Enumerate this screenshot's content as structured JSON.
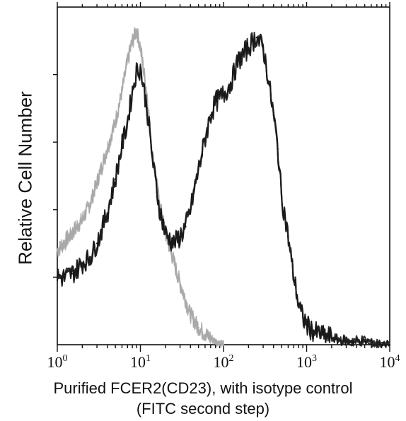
{
  "chart_data": {
    "type": "area",
    "xscale": "log",
    "xlim": [
      1,
      10000
    ],
    "ylim": [
      0,
      100
    ],
    "grid": false,
    "legend": "none",
    "xlabel_lines": [
      "Purified FCER2(CD23), with isotype control",
      "(FITC second step)"
    ],
    "ylabel": "Relative Cell Number",
    "xticks": [
      {
        "base": "10",
        "exp": "0",
        "value": 1
      },
      {
        "base": "10",
        "exp": "1",
        "value": 10
      },
      {
        "base": "10",
        "exp": "2",
        "value": 100
      },
      {
        "base": "10",
        "exp": "3",
        "value": 1000
      },
      {
        "base": "10",
        "exp": "4",
        "value": 10000
      }
    ],
    "series": [
      {
        "role": "isotype control",
        "color": "#a8a8a8",
        "x": [
          1,
          1.2,
          1.5,
          2,
          2.5,
          3,
          4,
          5,
          6,
          7,
          8,
          9,
          10,
          12,
          14,
          17,
          20,
          25,
          30,
          35,
          40,
          50,
          60,
          70,
          80,
          100
        ],
        "y": [
          28,
          30,
          33,
          37,
          42,
          48,
          58,
          66,
          75,
          84,
          90,
          93,
          88,
          74,
          56,
          42,
          33,
          25,
          18,
          13,
          9,
          5,
          3,
          2,
          1,
          0
        ]
      },
      {
        "role": "FCER2 (CD23)",
        "color": "#1a1a1a",
        "x": [
          1,
          1.2,
          1.5,
          2,
          2.5,
          3,
          4,
          5,
          6,
          7,
          8,
          9,
          10,
          12,
          14,
          17,
          20,
          25,
          30,
          35,
          40,
          50,
          60,
          70,
          80,
          100,
          120,
          150,
          200,
          250,
          300,
          350,
          400,
          450,
          500,
          600,
          700,
          800,
          900,
          1000,
          1200,
          1500,
          2000,
          3000,
          5000,
          8000,
          10000
        ],
        "y": [
          20,
          20,
          21,
          24,
          26,
          30,
          39,
          49,
          59,
          66,
          75,
          81,
          82,
          70,
          55,
          40,
          33,
          30,
          32,
          35,
          40,
          52,
          61,
          68,
          72,
          74,
          77,
          84,
          88,
          91,
          88,
          78,
          68,
          58,
          44,
          32,
          20,
          12,
          8,
          6,
          4,
          3,
          2,
          1,
          1,
          0,
          0
        ]
      }
    ]
  }
}
